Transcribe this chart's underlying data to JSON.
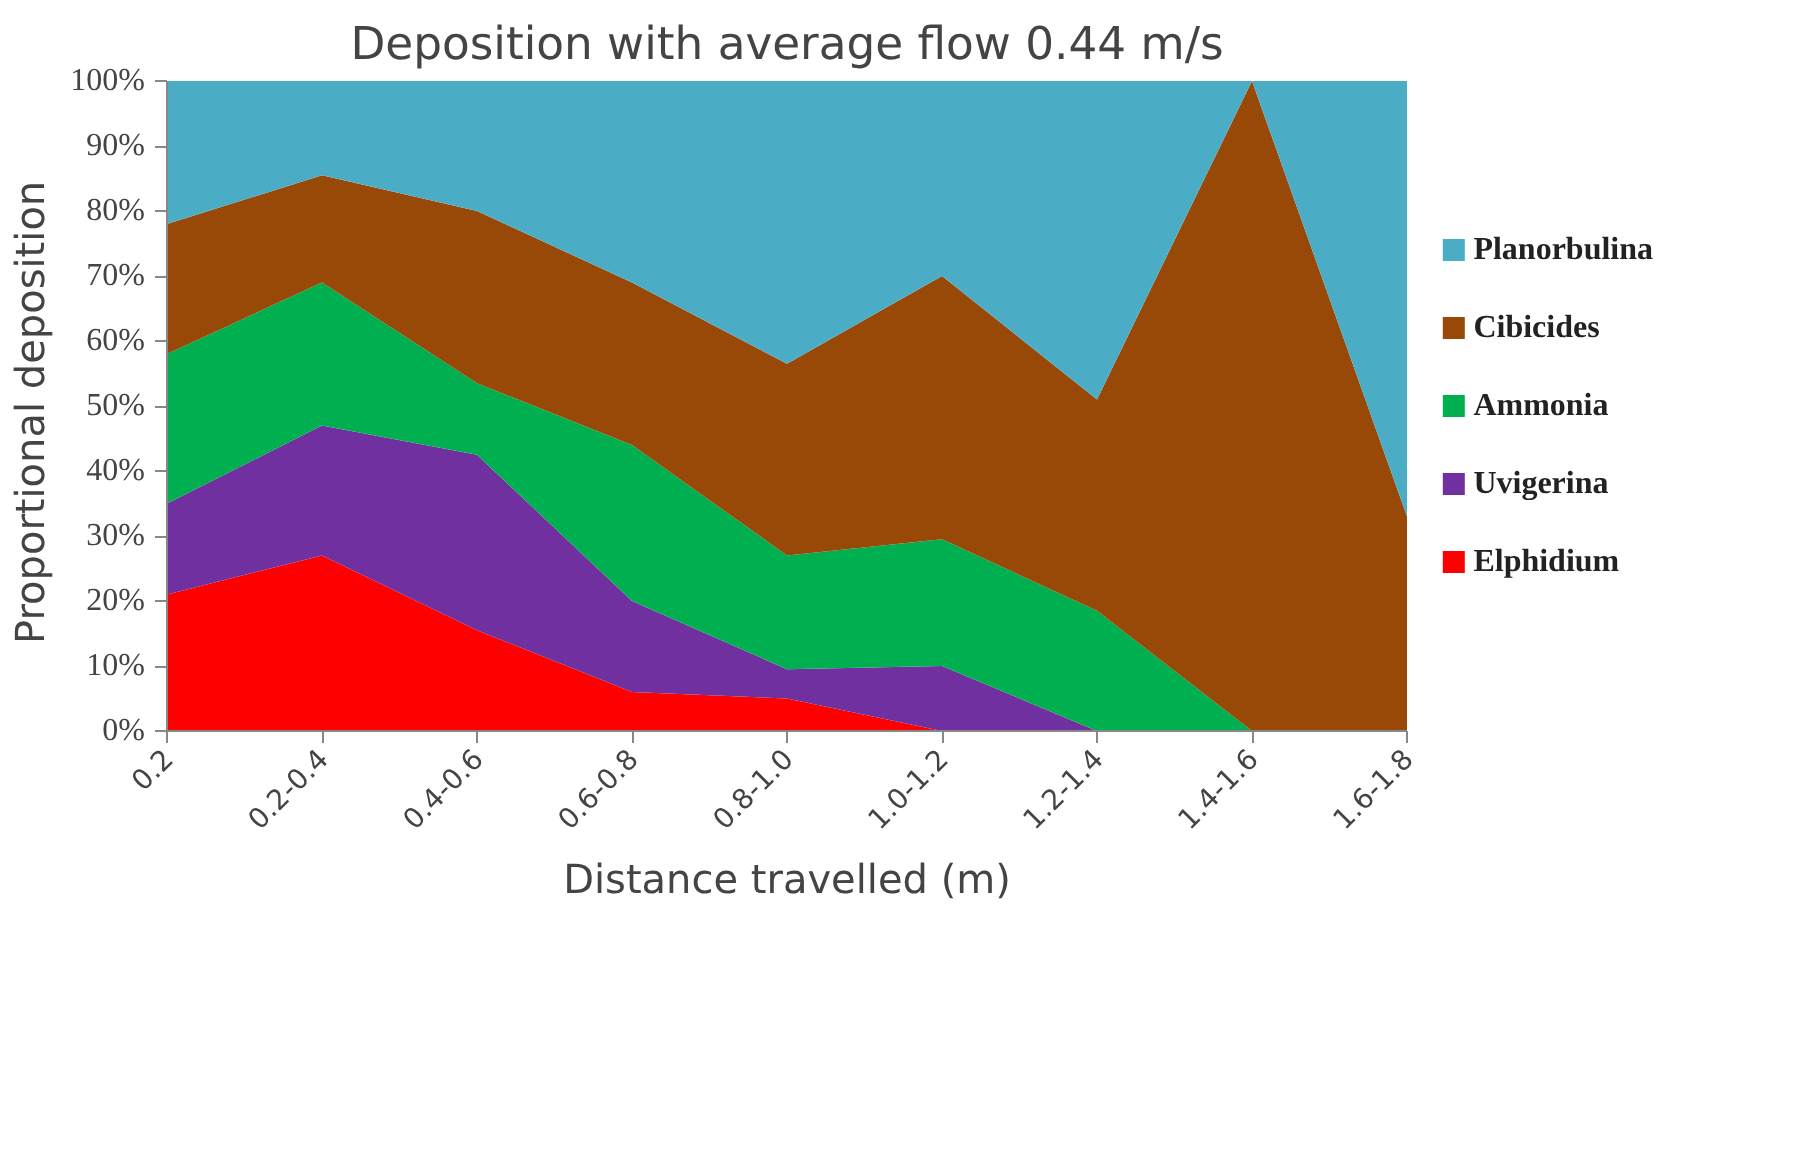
{
  "chart_data": {
    "type": "area",
    "stacked": true,
    "title": "Deposition with average flow 0.44 m/s",
    "xlabel": "Distance travelled (m)",
    "ylabel": "Proportional  deposition",
    "categories": [
      "0.2",
      "0.2-0.4",
      "0.4-0.6",
      "0.6-0.8",
      "0.8-1.0",
      "1.0-1.2",
      "1.2-1.4",
      "1.4-1.6",
      "1.6-1.8"
    ],
    "series": [
      {
        "name": "Elphidium",
        "color": "#ff0000",
        "values": [
          21,
          27,
          15.5,
          6,
          5,
          0,
          0,
          0,
          0
        ]
      },
      {
        "name": "Uvigerina",
        "color": "#7030a0",
        "values": [
          14,
          20,
          27,
          14,
          4.5,
          10,
          0,
          0,
          0
        ]
      },
      {
        "name": "Ammonia",
        "color": "#00b050",
        "values": [
          23,
          22,
          11,
          24,
          17.5,
          19.5,
          18.5,
          0,
          0
        ]
      },
      {
        "name": "Cibicides",
        "color": "#984807",
        "values": [
          20,
          16.5,
          26.5,
          25,
          29.5,
          40.5,
          32.5,
          100,
          33
        ]
      },
      {
        "name": "Planorbulina",
        "color": "#4bacc6",
        "values": [
          22,
          14.5,
          20,
          31,
          43.5,
          30,
          49,
          0,
          67
        ]
      }
    ],
    "ylim": [
      0,
      100
    ],
    "yticks": [
      {
        "value": 0,
        "label": "0%"
      },
      {
        "value": 10,
        "label": "10%"
      },
      {
        "value": 20,
        "label": "20%"
      },
      {
        "value": 30,
        "label": "30%"
      },
      {
        "value": 40,
        "label": "40%"
      },
      {
        "value": 50,
        "label": "50%"
      },
      {
        "value": 60,
        "label": "60%"
      },
      {
        "value": 70,
        "label": "70%"
      },
      {
        "value": 80,
        "label": "80%"
      },
      {
        "value": 90,
        "label": "90%"
      },
      {
        "value": 100,
        "label": "100%"
      }
    ],
    "grid": false,
    "legend": "right"
  }
}
